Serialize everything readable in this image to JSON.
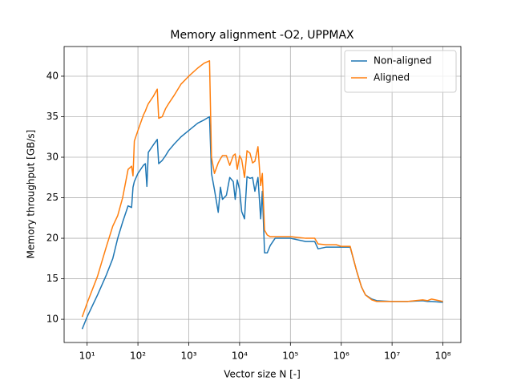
{
  "chart_data": {
    "type": "line",
    "title": "Memory alignment -O2, UPPMAX",
    "x_label": "Vector size N [-]",
    "y_label": "Memory throughput [GB/s]",
    "x_scale": "log",
    "grid": true,
    "legend": "upper right",
    "x": [
      8,
      10,
      16,
      24,
      32,
      40,
      50,
      64,
      75,
      80,
      85,
      100,
      128,
      140,
      150,
      160,
      200,
      240,
      256,
      300,
      350,
      400,
      512,
      700,
      1000,
      1500,
      2000,
      2560,
      2800,
      3200,
      3800,
      4200,
      4600,
      5500,
      6400,
      7500,
      8200,
      9000,
      10000,
      11000,
      12500,
      14000,
      16000,
      18000,
      20000,
      23000,
      26000,
      28000,
      31000,
      35000,
      40000,
      50000,
      100000,
      200000,
      300000,
      350000,
      500000,
      800000,
      1000000,
      1500000,
      2000000,
      2500000,
      3000000,
      4000000,
      5000000,
      10000000,
      20000000,
      40000000,
      50000000,
      60000000,
      100000000
    ],
    "series": [
      {
        "name": "Non-aligned",
        "color": "#1f77b4",
        "values": [
          8.8,
          10.3,
          13,
          15.5,
          17.5,
          20,
          22,
          24,
          23.8,
          26.3,
          27,
          28,
          29,
          29.2,
          26.4,
          30.6,
          31.5,
          32.2,
          29.2,
          29.6,
          30.2,
          30.8,
          31.6,
          32.5,
          33.3,
          34.2,
          34.6,
          35,
          28,
          26,
          23.2,
          26.3,
          24.8,
          25.3,
          27.5,
          27,
          24.8,
          27.2,
          26,
          23.3,
          22.4,
          27.6,
          27.4,
          27.5,
          25.8,
          27.5,
          22.4,
          25.8,
          18.2,
          18.2,
          19.1,
          20,
          20,
          19.6,
          19.6,
          18.7,
          18.9,
          18.9,
          18.9,
          18.9,
          16,
          14,
          13,
          12.5,
          12.3,
          12.2,
          12.2,
          12.3,
          12.2,
          12.2,
          12.1
        ]
      },
      {
        "name": "Aligned",
        "color": "#ff7f0e",
        "values": [
          10.3,
          12,
          15.3,
          19,
          21.5,
          22.8,
          25,
          28.5,
          28.9,
          27.7,
          32,
          33.3,
          35.2,
          35.7,
          36.2,
          36.6,
          37.5,
          38.4,
          34.8,
          35,
          36,
          36.6,
          37.6,
          39,
          40,
          41,
          41.6,
          41.9,
          30,
          28,
          29.3,
          29.8,
          30.2,
          30.2,
          29,
          30.2,
          30.4,
          28.5,
          30.2,
          29.7,
          27.5,
          30.8,
          30.5,
          29.3,
          29.5,
          31.3,
          26.5,
          28,
          21,
          20.4,
          20.2,
          20.2,
          20.2,
          20,
          20,
          19.3,
          19.2,
          19.2,
          19,
          19,
          16,
          14,
          13,
          12.4,
          12.2,
          12.2,
          12.2,
          12.4,
          12.3,
          12.5,
          12.2
        ]
      }
    ],
    "xlim": [
      3.53,
      226000000
    ],
    "ylim": [
      7.14,
      43.66
    ],
    "xticks": [
      {
        "value": 10,
        "label": "10¹"
      },
      {
        "value": 100,
        "label": "10²"
      },
      {
        "value": 1000,
        "label": "10³"
      },
      {
        "value": 10000,
        "label": "10⁴"
      },
      {
        "value": 100000,
        "label": "10⁵"
      },
      {
        "value": 1000000,
        "label": "10⁶"
      },
      {
        "value": 10000000,
        "label": "10⁷"
      },
      {
        "value": 100000000,
        "label": "10⁸"
      }
    ],
    "yticks": [
      10,
      15,
      20,
      25,
      30,
      35,
      40
    ]
  }
}
